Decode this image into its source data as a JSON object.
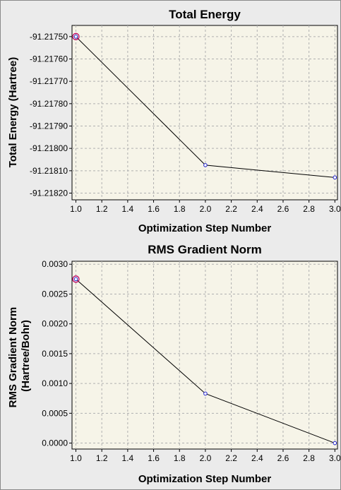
{
  "chart_data": [
    {
      "type": "line",
      "title": "Total Energy",
      "xlabel": "Optimization Step Number",
      "ylabel": "Total Energy (Hartree)",
      "x": [
        1.0,
        2.0,
        3.0
      ],
      "series": [
        {
          "values": [
            -91.2175,
            -91.218075,
            -91.21813
          ]
        }
      ],
      "xlim": [
        0.97,
        3.02
      ],
      "ylim": [
        -91.21823,
        -91.21745
      ],
      "xticks": [
        "1.0",
        "1.2",
        "1.4",
        "1.6",
        "1.8",
        "2.0",
        "2.2",
        "2.4",
        "2.6",
        "2.8",
        "3.0"
      ],
      "yticks": [
        "-91.21750",
        "-91.21760",
        "-91.21770",
        "-91.21780",
        "-91.21790",
        "-91.21800",
        "-91.21810",
        "-91.21820"
      ],
      "xtick_values": [
        1.0,
        1.2,
        1.4,
        1.6,
        1.8,
        2.0,
        2.2,
        2.4,
        2.6,
        2.8,
        3.0
      ],
      "ytick_values": [
        -91.2175,
        -91.2176,
        -91.2177,
        -91.2178,
        -91.2179,
        -91.218,
        -91.2181,
        -91.2182
      ],
      "grid": true,
      "highlight_index": 0,
      "colors": {
        "line": "#000000",
        "point": "#2020d0",
        "highlight": "#c00060",
        "plot_bg": "#f6f4e8",
        "grid": "#b0b0b0"
      }
    },
    {
      "type": "line",
      "title": "RMS Gradient Norm",
      "xlabel": "Optimization Step Number",
      "ylabel": "RMS Gradient Norm (Hartree/Bohr)",
      "ylabel_lines": [
        "RMS Gradient Norm",
        "(Hartree/Bohr)"
      ],
      "x": [
        1.0,
        2.0,
        3.0
      ],
      "series": [
        {
          "values": [
            0.00275,
            0.00083,
            0.0
          ]
        }
      ],
      "xlim": [
        0.97,
        3.02
      ],
      "ylim": [
        -0.0001,
        0.00305
      ],
      "xticks": [
        "1.0",
        "1.2",
        "1.4",
        "1.6",
        "1.8",
        "2.0",
        "2.2",
        "2.4",
        "2.6",
        "2.8",
        "3.0"
      ],
      "yticks": [
        "0.0030",
        "0.0025",
        "0.0020",
        "0.0015",
        "0.0010",
        "0.0005",
        "0.0000"
      ],
      "xtick_values": [
        1.0,
        1.2,
        1.4,
        1.6,
        1.8,
        2.0,
        2.2,
        2.4,
        2.6,
        2.8,
        3.0
      ],
      "ytick_values": [
        0.003,
        0.0025,
        0.002,
        0.0015,
        0.001,
        0.0005,
        0.0
      ],
      "grid": true,
      "highlight_index": 0,
      "colors": {
        "line": "#000000",
        "point": "#2020d0",
        "highlight": "#c00060",
        "plot_bg": "#f6f4e8",
        "grid": "#b0b0b0"
      }
    }
  ]
}
